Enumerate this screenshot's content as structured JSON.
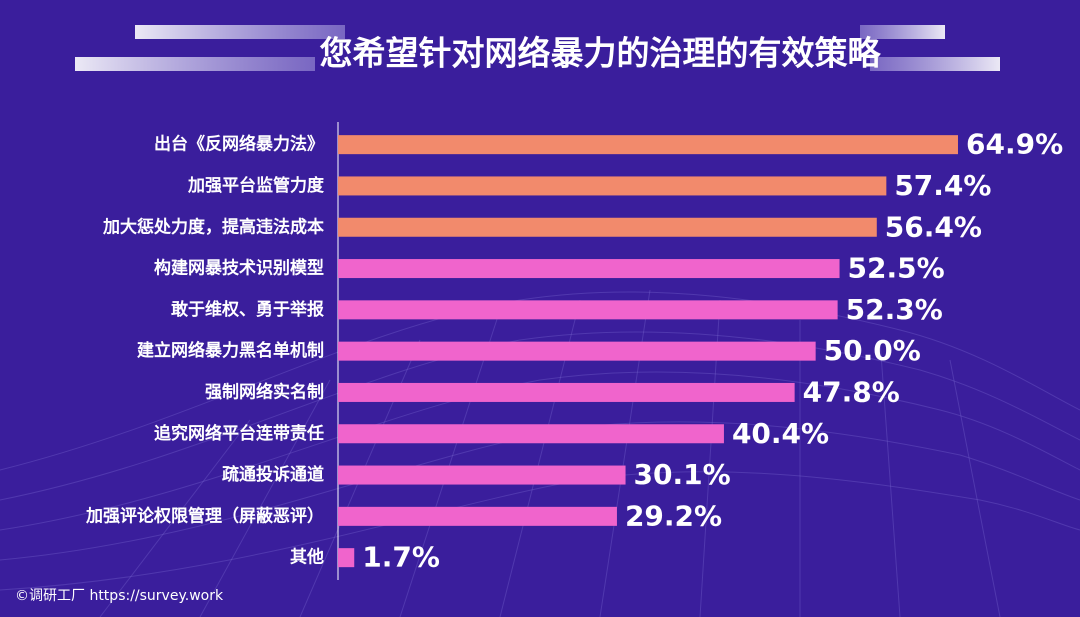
{
  "chart_data": {
    "type": "bar",
    "orientation": "horizontal",
    "title": "您希望针对网络暴力的治理的有效策略",
    "categories": [
      "出台《反网络暴力法》",
      "加强平台监管力度",
      "加大惩处力度，提高违法成本",
      "构建网暴技术识别模型",
      "敢于维权、勇于举报",
      "建立网络暴力黑名单机制",
      "强制网络实名制",
      "追究网络平台连带责任",
      "疏通投诉通道",
      "加强评论权限管理（屏蔽恶评）",
      "其他"
    ],
    "values": [
      64.9,
      57.4,
      56.4,
      52.5,
      52.3,
      50.0,
      47.8,
      40.4,
      30.1,
      29.2,
      1.7
    ],
    "value_labels": [
      "64.9%",
      "57.4%",
      "56.4%",
      "52.5%",
      "52.3%",
      "50.0%",
      "47.8%",
      "40.4%",
      "30.1%",
      "29.2%",
      "1.7%"
    ],
    "colors": [
      "#f28a6c",
      "#f28a6c",
      "#f28a6c",
      "#f064cc",
      "#f064cc",
      "#f064cc",
      "#f064cc",
      "#f064cc",
      "#f064cc",
      "#f064cc",
      "#f064cc"
    ],
    "xlim": [
      0,
      70
    ],
    "source": "©调研工厂 https://survey.work"
  }
}
